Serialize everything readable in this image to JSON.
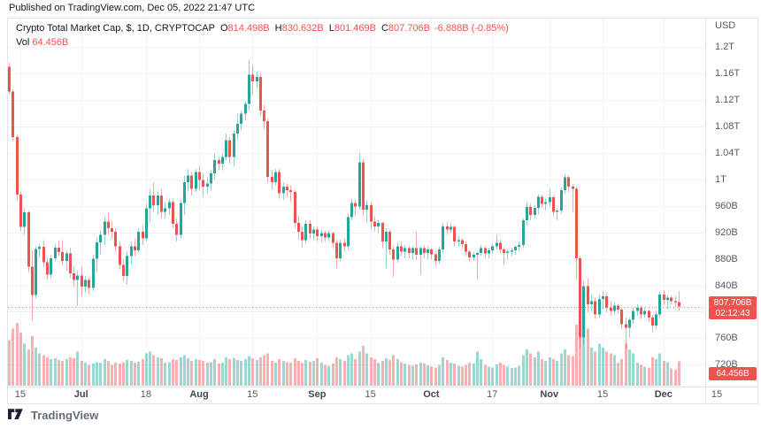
{
  "published_bar": {
    "text": "Published on TradingView.com, Dec 05, 2022 21:47 UTC"
  },
  "legend": {
    "title": "Crypto Total Market Cap, $, 1D, CRYPTOCAP",
    "o_label": "O",
    "o_value": "814.498B",
    "h_label": "H",
    "h_value": "830.632B",
    "l_label": "L",
    "l_value": "801.469B",
    "c_label": "C",
    "c_value": "807.706B",
    "change": "-6.888B (-0.85%)",
    "vol_label": "Vol",
    "vol_value": "64.456B"
  },
  "price_axis": {
    "currency": "USD",
    "labels": [
      {
        "text": "1.2T",
        "value": 1200
      },
      {
        "text": "1.16T",
        "value": 1160
      },
      {
        "text": "1.12T",
        "value": 1120
      },
      {
        "text": "1.08T",
        "value": 1080
      },
      {
        "text": "1.04T",
        "value": 1040
      },
      {
        "text": "1T",
        "value": 1000
      },
      {
        "text": "960B",
        "value": 960
      },
      {
        "text": "920B",
        "value": 920
      },
      {
        "text": "880B",
        "value": 880
      },
      {
        "text": "840B",
        "value": 840
      },
      {
        "text": "",
        "value": 800
      },
      {
        "text": "760B",
        "value": 760
      },
      {
        "text": "720B",
        "value": 720
      }
    ],
    "price_badge": {
      "price": "807.706B",
      "countdown": "02:12:43"
    },
    "volume_badge": "64.456B"
  },
  "time_axis": {
    "labels": [
      {
        "text": "15",
        "index": 3,
        "month": false
      },
      {
        "text": "Jul",
        "index": 19,
        "month": true
      },
      {
        "text": "18",
        "index": 36,
        "month": false
      },
      {
        "text": "Aug",
        "index": 50,
        "month": true
      },
      {
        "text": "15",
        "index": 64,
        "month": false
      },
      {
        "text": "Sep",
        "index": 81,
        "month": true
      },
      {
        "text": "15",
        "index": 95,
        "month": false
      },
      {
        "text": "Oct",
        "index": 111,
        "month": true
      },
      {
        "text": "17",
        "index": 127,
        "month": false
      },
      {
        "text": "Nov",
        "index": 142,
        "month": true
      },
      {
        "text": "15",
        "index": 156,
        "month": false
      },
      {
        "text": "Dec",
        "index": 172,
        "month": true
      },
      {
        "text": "15",
        "index": 186,
        "month": false
      }
    ]
  },
  "attribution": {
    "text": "TradingView"
  },
  "colors": {
    "up": "#26a69a",
    "down": "#ef5350",
    "wick_opacity": 0.5,
    "volume_opacity": 0.45,
    "badge": "#ef5350",
    "grid": "#f0f3fa",
    "price_line": "#ef5350",
    "text": "#131722",
    "axis_text": "#555a64"
  },
  "chart_data": {
    "type": "candlestick",
    "title": "Crypto Total Market Cap",
    "symbol": "CRYPTOCAP",
    "timeframe": "1D",
    "start_date": "2022-06-12",
    "end_date": "2022-12-05",
    "units": "billions_usd",
    "candle_fields": [
      "open",
      "high",
      "low",
      "close",
      "volume"
    ],
    "y_axis": {
      "min": 687,
      "max": 1243
    },
    "current_price": 807.706,
    "current_volume": 64.456,
    "last_ohlc": {
      "open": 814.498,
      "high": 830.632,
      "low": 801.469,
      "close": 807.706,
      "change": -6.888,
      "change_pct": -0.85
    },
    "candles": [
      [
        1170,
        1176,
        1128,
        1133,
        120
      ],
      [
        1133,
        1136,
        1058,
        1064,
        150
      ],
      [
        1064,
        1068,
        968,
        977,
        165
      ],
      [
        977,
        982,
        922,
        928,
        140
      ],
      [
        928,
        956,
        916,
        950,
        110
      ],
      [
        950,
        953,
        860,
        868,
        95
      ],
      [
        868,
        893,
        785,
        825,
        130
      ],
      [
        825,
        899,
        820,
        895,
        100
      ],
      [
        895,
        903,
        882,
        898,
        85
      ],
      [
        898,
        908,
        868,
        875,
        80
      ],
      [
        875,
        882,
        848,
        856,
        75
      ],
      [
        856,
        886,
        851,
        881,
        70
      ],
      [
        881,
        903,
        876,
        897,
        72
      ],
      [
        897,
        906,
        884,
        890,
        68
      ],
      [
        890,
        908,
        870,
        877,
        65
      ],
      [
        877,
        893,
        862,
        888,
        70
      ],
      [
        888,
        897,
        851,
        858,
        75
      ],
      [
        858,
        868,
        838,
        848,
        72
      ],
      [
        848,
        862,
        808,
        855,
        90
      ],
      [
        855,
        868,
        824,
        838,
        65
      ],
      [
        838,
        854,
        830,
        848,
        60
      ],
      [
        848,
        852,
        826,
        836,
        55
      ],
      [
        836,
        886,
        831,
        880,
        58
      ],
      [
        880,
        912,
        860,
        905,
        62
      ],
      [
        905,
        922,
        886,
        916,
        60
      ],
      [
        916,
        943,
        901,
        936,
        70
      ],
      [
        936,
        949,
        916,
        926,
        65
      ],
      [
        926,
        936,
        911,
        921,
        55
      ],
      [
        921,
        926,
        891,
        899,
        60
      ],
      [
        899,
        906,
        864,
        871,
        58
      ],
      [
        871,
        879,
        846,
        854,
        62
      ],
      [
        854,
        891,
        841,
        884,
        68
      ],
      [
        884,
        906,
        871,
        899,
        65
      ],
      [
        899,
        911,
        884,
        893,
        60
      ],
      [
        893,
        926,
        888,
        921,
        63
      ],
      [
        921,
        931,
        901,
        911,
        70
      ],
      [
        911,
        963,
        906,
        956,
        85
      ],
      [
        956,
        986,
        936,
        976,
        90
      ],
      [
        976,
        996,
        951,
        961,
        80
      ],
      [
        961,
        981,
        946,
        976,
        75
      ],
      [
        976,
        986,
        941,
        951,
        72
      ],
      [
        951,
        966,
        941,
        956,
        60
      ],
      [
        956,
        971,
        946,
        966,
        62
      ],
      [
        966,
        971,
        926,
        933,
        70
      ],
      [
        933,
        941,
        906,
        916,
        68
      ],
      [
        916,
        969,
        911,
        964,
        75
      ],
      [
        964,
        1006,
        946,
        996,
        80
      ],
      [
        996,
        1016,
        981,
        1006,
        72
      ],
      [
        1006,
        1011,
        976,
        986,
        65
      ],
      [
        986,
        1016,
        981,
        1011,
        70
      ],
      [
        1011,
        1020,
        984,
        999,
        68
      ],
      [
        999,
        1009,
        974,
        989,
        65
      ],
      [
        989,
        1004,
        979,
        994,
        60
      ],
      [
        994,
        1014,
        984,
        1009,
        62
      ],
      [
        1009,
        1039,
        999,
        1029,
        70
      ],
      [
        1029,
        1034,
        1014,
        1024,
        58
      ],
      [
        1024,
        1039,
        1014,
        1034,
        60
      ],
      [
        1034,
        1069,
        1029,
        1059,
        75
      ],
      [
        1059,
        1064,
        1024,
        1034,
        70
      ],
      [
        1034,
        1074,
        1019,
        1069,
        72
      ],
      [
        1069,
        1099,
        1059,
        1084,
        68
      ],
      [
        1084,
        1104,
        1074,
        1099,
        65
      ],
      [
        1099,
        1119,
        1089,
        1114,
        70
      ],
      [
        1114,
        1180,
        1104,
        1158,
        78
      ],
      [
        1158,
        1172,
        1128,
        1148,
        72
      ],
      [
        1148,
        1163,
        1138,
        1155,
        68
      ],
      [
        1155,
        1160,
        1096,
        1104,
        75
      ],
      [
        1104,
        1112,
        1076,
        1088,
        80
      ],
      [
        1088,
        1092,
        996,
        1004,
        85
      ],
      [
        1004,
        1014,
        986,
        996,
        65
      ],
      [
        996,
        1016,
        991,
        1011,
        60
      ],
      [
        1011,
        1016,
        971,
        979,
        70
      ],
      [
        979,
        996,
        969,
        989,
        65
      ],
      [
        989,
        994,
        974,
        984,
        62
      ],
      [
        984,
        991,
        966,
        981,
        60
      ],
      [
        981,
        984,
        926,
        934,
        72
      ],
      [
        934,
        944,
        909,
        921,
        65
      ],
      [
        921,
        928,
        898,
        908,
        60
      ],
      [
        908,
        938,
        903,
        933,
        68
      ],
      [
        933,
        938,
        911,
        918,
        63
      ],
      [
        918,
        929,
        908,
        924,
        65
      ],
      [
        924,
        928,
        906,
        914,
        72
      ],
      [
        914,
        924,
        904,
        919,
        60
      ],
      [
        919,
        922,
        906,
        912,
        55
      ],
      [
        912,
        923,
        907,
        919,
        52
      ],
      [
        919,
        921,
        896,
        904,
        58
      ],
      [
        904,
        909,
        866,
        881,
        75
      ],
      [
        881,
        909,
        876,
        904,
        70
      ],
      [
        904,
        911,
        891,
        899,
        65
      ],
      [
        899,
        948,
        894,
        943,
        80
      ],
      [
        943,
        971,
        938,
        964,
        85
      ],
      [
        964,
        969,
        944,
        959,
        70
      ],
      [
        959,
        1040,
        954,
        1026,
        90
      ],
      [
        1026,
        1031,
        944,
        954,
        105
      ],
      [
        954,
        969,
        934,
        961,
        85
      ],
      [
        961,
        966,
        924,
        936,
        75
      ],
      [
        936,
        944,
        921,
        929,
        70
      ],
      [
        929,
        939,
        919,
        934,
        60
      ],
      [
        934,
        936,
        896,
        906,
        65
      ],
      [
        906,
        926,
        866,
        921,
        72
      ],
      [
        921,
        924,
        886,
        894,
        68
      ],
      [
        894,
        899,
        852,
        879,
        80
      ],
      [
        879,
        904,
        874,
        899,
        70
      ],
      [
        899,
        906,
        884,
        891,
        62
      ],
      [
        891,
        901,
        881,
        896,
        58
      ],
      [
        896,
        899,
        881,
        889,
        55
      ],
      [
        889,
        899,
        879,
        896,
        52
      ],
      [
        896,
        921,
        879,
        886,
        56
      ],
      [
        886,
        899,
        856,
        896,
        60
      ],
      [
        896,
        901,
        881,
        889,
        58
      ],
      [
        889,
        899,
        879,
        894,
        54
      ],
      [
        894,
        896,
        879,
        887,
        50
      ],
      [
        887,
        891,
        869,
        877,
        48
      ],
      [
        877,
        898,
        872,
        894,
        55
      ],
      [
        894,
        934,
        889,
        929,
        75
      ],
      [
        929,
        936,
        916,
        924,
        68
      ],
      [
        924,
        934,
        919,
        928,
        60
      ],
      [
        928,
        931,
        899,
        906,
        58
      ],
      [
        906,
        914,
        899,
        908,
        52
      ],
      [
        908,
        911,
        896,
        902,
        50
      ],
      [
        902,
        906,
        884,
        891,
        55
      ],
      [
        891,
        894,
        876,
        882,
        60
      ],
      [
        882,
        891,
        877,
        886,
        58
      ],
      [
        886,
        891,
        849,
        889,
        90
      ],
      [
        889,
        901,
        884,
        896,
        70
      ],
      [
        896,
        899,
        881,
        888,
        55
      ],
      [
        888,
        896,
        881,
        893,
        50
      ],
      [
        893,
        903,
        888,
        899,
        48
      ],
      [
        899,
        916,
        894,
        904,
        56
      ],
      [
        904,
        908,
        889,
        894,
        60
      ],
      [
        894,
        897,
        871,
        889,
        55
      ],
      [
        889,
        894,
        879,
        891,
        50
      ],
      [
        891,
        896,
        884,
        893,
        46
      ],
      [
        893,
        901,
        886,
        898,
        48
      ],
      [
        898,
        906,
        891,
        901,
        52
      ],
      [
        901,
        941,
        896,
        938,
        80
      ],
      [
        938,
        966,
        931,
        958,
        95
      ],
      [
        958,
        963,
        938,
        946,
        85
      ],
      [
        946,
        961,
        941,
        957,
        75
      ],
      [
        957,
        978,
        947,
        974,
        90
      ],
      [
        974,
        977,
        957,
        963,
        70
      ],
      [
        963,
        971,
        953,
        966,
        65
      ],
      [
        966,
        986,
        958,
        973,
        75
      ],
      [
        973,
        976,
        944,
        951,
        70
      ],
      [
        951,
        956,
        938,
        953,
        65
      ],
      [
        953,
        988,
        948,
        984,
        85
      ],
      [
        984,
        1008,
        978,
        1003,
        95
      ],
      [
        1003,
        1006,
        981,
        989,
        80
      ],
      [
        989,
        993,
        951,
        986,
        78
      ],
      [
        986,
        989,
        849,
        881,
        160
      ],
      [
        881,
        884,
        746,
        762,
        245
      ],
      [
        762,
        846,
        751,
        839,
        230
      ],
      [
        839,
        851,
        799,
        811,
        150
      ],
      [
        811,
        826,
        801,
        816,
        100
      ],
      [
        816,
        821,
        789,
        796,
        90
      ],
      [
        796,
        826,
        791,
        819,
        110
      ],
      [
        819,
        831,
        804,
        823,
        100
      ],
      [
        823,
        828,
        799,
        806,
        90
      ],
      [
        806,
        816,
        794,
        801,
        85
      ],
      [
        801,
        813,
        796,
        809,
        80
      ],
      [
        809,
        812,
        797,
        803,
        60
      ],
      [
        803,
        806,
        774,
        781,
        70
      ],
      [
        781,
        791,
        744,
        776,
        110
      ],
      [
        776,
        791,
        761,
        788,
        95
      ],
      [
        788,
        806,
        781,
        801,
        85
      ],
      [
        801,
        811,
        794,
        806,
        60
      ],
      [
        806,
        809,
        789,
        796,
        55
      ],
      [
        796,
        806,
        791,
        801,
        50
      ],
      [
        801,
        804,
        784,
        791,
        48
      ],
      [
        791,
        796,
        769,
        779,
        75
      ],
      [
        779,
        801,
        774,
        796,
        70
      ],
      [
        796,
        831,
        791,
        826,
        85
      ],
      [
        826,
        833,
        809,
        818,
        65
      ],
      [
        818,
        826,
        804,
        821,
        62
      ],
      [
        821,
        824,
        811,
        816,
        45
      ],
      [
        816,
        823,
        807,
        814,
        42
      ],
      [
        814.498,
        830.632,
        801.469,
        807.706,
        64.456
      ]
    ]
  }
}
